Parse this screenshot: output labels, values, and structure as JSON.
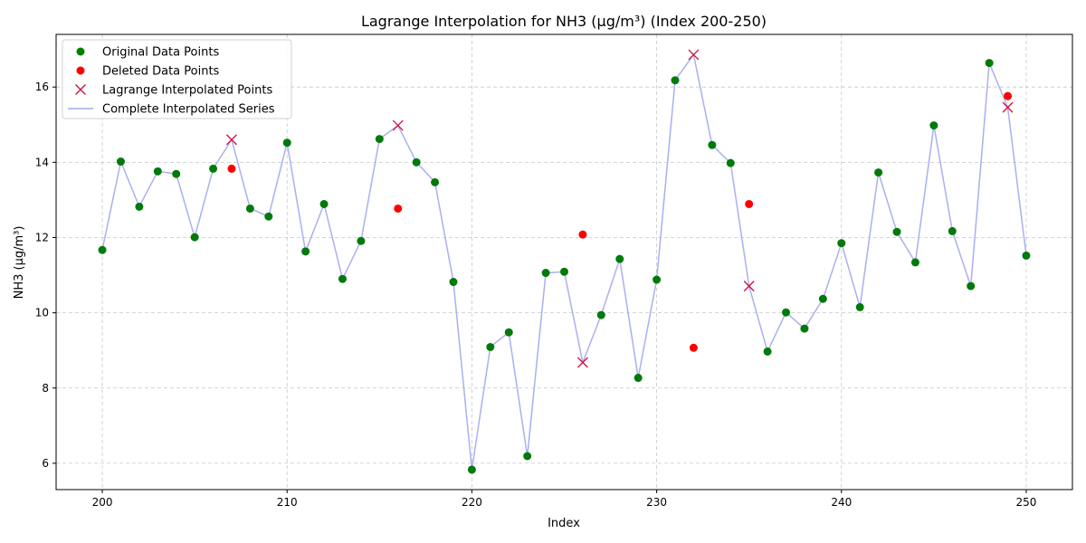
{
  "chart_data": {
    "type": "scatter",
    "title": "Lagrange Interpolation for NH3 (µg/m³) (Index 200-250)",
    "xlabel": "Index",
    "ylabel": "NH3 (µg/m³)",
    "xlim": [
      197.5,
      252.5
    ],
    "ylim": [
      5.3,
      17.4
    ],
    "xticks": [
      200,
      210,
      220,
      230,
      240,
      250
    ],
    "yticks": [
      6,
      8,
      10,
      12,
      14,
      16
    ],
    "grid": true,
    "legend_position": "upper-left",
    "legend": [
      {
        "label": "Original Data Points",
        "marker": "circle",
        "color": "#008000"
      },
      {
        "label": "Deleted Data Points",
        "marker": "circle",
        "color": "#ff0000"
      },
      {
        "label": "Lagrange Interpolated Points",
        "marker": "x",
        "color": "#ff0000"
      },
      {
        "label": "Complete Interpolated Series",
        "marker": "line",
        "color": "#b0b4f0"
      }
    ],
    "colors": {
      "original": "#007a0a",
      "deleted": "#ff0000",
      "interpolated": "#d0103a",
      "series": "#aab0f0"
    },
    "series": [
      {
        "name": "Original Data Points",
        "points": [
          [
            200,
            11.67
          ],
          [
            201,
            14.02
          ],
          [
            202,
            12.82
          ],
          [
            203,
            13.76
          ],
          [
            204,
            13.69
          ],
          [
            205,
            12.01
          ],
          [
            206,
            13.83
          ],
          [
            208,
            12.77
          ],
          [
            209,
            12.56
          ],
          [
            210,
            14.52
          ],
          [
            211,
            11.63
          ],
          [
            212,
            12.89
          ],
          [
            213,
            10.9
          ],
          [
            214,
            11.91
          ],
          [
            215,
            14.62
          ],
          [
            217,
            14.0
          ],
          [
            218,
            13.47
          ],
          [
            219,
            10.82
          ],
          [
            220,
            5.83
          ],
          [
            221,
            9.09
          ],
          [
            222,
            9.48
          ],
          [
            223,
            6.19
          ],
          [
            224,
            11.06
          ],
          [
            225,
            11.09
          ],
          [
            227,
            9.94
          ],
          [
            228,
            11.43
          ],
          [
            229,
            8.27
          ],
          [
            230,
            10.88
          ],
          [
            231,
            16.18
          ],
          [
            233,
            14.46
          ],
          [
            234,
            13.98
          ],
          [
            236,
            8.97
          ],
          [
            237,
            10.01
          ],
          [
            238,
            9.58
          ],
          [
            239,
            10.37
          ],
          [
            240,
            11.85
          ],
          [
            241,
            10.15
          ],
          [
            242,
            13.73
          ],
          [
            243,
            12.15
          ],
          [
            244,
            11.34
          ],
          [
            245,
            14.98
          ],
          [
            246,
            12.17
          ],
          [
            247,
            10.71
          ],
          [
            248,
            16.64
          ],
          [
            250,
            11.52
          ]
        ]
      },
      {
        "name": "Deleted Data Points",
        "points": [
          [
            207,
            13.83
          ],
          [
            216,
            12.77
          ],
          [
            226,
            12.08
          ],
          [
            232,
            9.07
          ],
          [
            235,
            12.89
          ],
          [
            249,
            15.76
          ]
        ]
      },
      {
        "name": "Lagrange Interpolated Points",
        "points": [
          [
            207,
            14.6
          ],
          [
            216,
            14.98
          ],
          [
            226,
            8.68
          ],
          [
            232,
            16.86
          ],
          [
            235,
            10.71
          ],
          [
            249,
            15.46
          ]
        ]
      },
      {
        "name": "Complete Interpolated Series",
        "points": [
          [
            200,
            11.67
          ],
          [
            201,
            14.02
          ],
          [
            202,
            12.82
          ],
          [
            203,
            13.76
          ],
          [
            204,
            13.69
          ],
          [
            205,
            12.01
          ],
          [
            206,
            13.83
          ],
          [
            207,
            14.6
          ],
          [
            208,
            12.77
          ],
          [
            209,
            12.56
          ],
          [
            210,
            14.52
          ],
          [
            211,
            11.63
          ],
          [
            212,
            12.89
          ],
          [
            213,
            10.9
          ],
          [
            214,
            11.91
          ],
          [
            215,
            14.62
          ],
          [
            216,
            14.98
          ],
          [
            217,
            14.0
          ],
          [
            218,
            13.47
          ],
          [
            219,
            10.82
          ],
          [
            220,
            5.83
          ],
          [
            221,
            9.09
          ],
          [
            222,
            9.48
          ],
          [
            223,
            6.19
          ],
          [
            224,
            11.06
          ],
          [
            225,
            11.09
          ],
          [
            226,
            8.68
          ],
          [
            227,
            9.94
          ],
          [
            228,
            11.43
          ],
          [
            229,
            8.27
          ],
          [
            230,
            10.88
          ],
          [
            231,
            16.18
          ],
          [
            232,
            16.86
          ],
          [
            233,
            14.46
          ],
          [
            234,
            13.98
          ],
          [
            235,
            10.71
          ],
          [
            236,
            8.97
          ],
          [
            237,
            10.01
          ],
          [
            238,
            9.58
          ],
          [
            239,
            10.37
          ],
          [
            240,
            11.85
          ],
          [
            241,
            10.15
          ],
          [
            242,
            13.73
          ],
          [
            243,
            12.15
          ],
          [
            244,
            11.34
          ],
          [
            245,
            14.98
          ],
          [
            246,
            12.17
          ],
          [
            247,
            10.71
          ],
          [
            248,
            16.64
          ],
          [
            249,
            15.46
          ],
          [
            250,
            11.52
          ]
        ]
      }
    ]
  }
}
